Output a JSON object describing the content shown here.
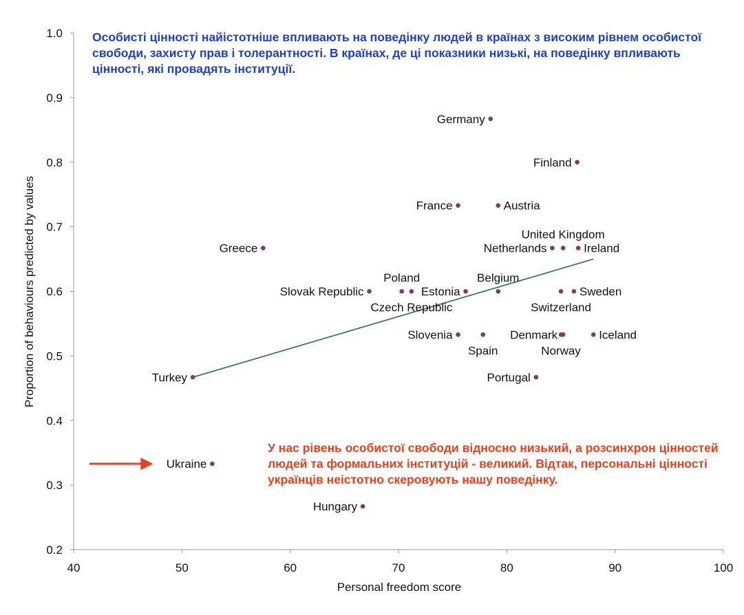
{
  "colors": {
    "point": "#7b3b6b",
    "trendline": "#3d7a5a",
    "axis": "#9a9a9a",
    "note_top": "#1f3fd0",
    "note_bottom": "#e8421f",
    "arrow": "#e8421f"
  },
  "notes": {
    "top": "Особисті цінності найістотніше впливають на поведінку людей в країнах з високим рівнем особистої свободи, захисту прав і толерантності. В країнах, де ці показники низькі, на поведінку впливають цінності, які провадять інституції.",
    "bottom": "У нас рівень особистої свободи відносно низький, а розсинхрон цінностей людей та формальних інституцій - великий. Відтак, персональні цінності українців неістотно скеровують нашу поведінку."
  },
  "chart_data": {
    "type": "scatter",
    "xlabel": "Personal freedom score",
    "ylabel": "Proportion of behaviours predicted by values",
    "xlim": [
      40,
      100
    ],
    "ylim": [
      0.2,
      1.0
    ],
    "x_ticks": [
      "40",
      "50",
      "60",
      "70",
      "80",
      "90",
      "100"
    ],
    "y_ticks": [
      "0.2",
      "0.3",
      "0.4",
      "0.5",
      "0.6",
      "0.7",
      "0.8",
      "0.9",
      "1.0"
    ],
    "grid": false,
    "points": [
      {
        "label": "Germany",
        "x": 78.5,
        "y": 0.867,
        "pos": "left"
      },
      {
        "label": "Finland",
        "x": 86.5,
        "y": 0.8,
        "pos": "left"
      },
      {
        "label": "France",
        "x": 75.5,
        "y": 0.733,
        "pos": "left"
      },
      {
        "label": "Austria",
        "x": 79.2,
        "y": 0.733,
        "pos": "right"
      },
      {
        "label": "Greece",
        "x": 57.5,
        "y": 0.667,
        "pos": "left"
      },
      {
        "label": "Netherlands",
        "x": 84.2,
        "y": 0.667,
        "pos": "left"
      },
      {
        "label": "United Kingdom",
        "x": 85.2,
        "y": 0.667,
        "pos": "above"
      },
      {
        "label": "Ireland",
        "x": 86.6,
        "y": 0.667,
        "pos": "right"
      },
      {
        "label": "Slovak Republic",
        "x": 67.3,
        "y": 0.6,
        "pos": "left"
      },
      {
        "label": "Poland",
        "x": 70.3,
        "y": 0.6,
        "pos": "above"
      },
      {
        "label": "Czech Republic",
        "x": 71.2,
        "y": 0.6,
        "pos": "below"
      },
      {
        "label": "Estonia",
        "x": 76.2,
        "y": 0.6,
        "pos": "left"
      },
      {
        "label": "Belgium",
        "x": 79.2,
        "y": 0.6,
        "pos": "above"
      },
      {
        "label": "Switzerland",
        "x": 85.0,
        "y": 0.6,
        "pos": "below"
      },
      {
        "label": "Sweden",
        "x": 86.2,
        "y": 0.6,
        "pos": "right"
      },
      {
        "label": "Slovenia",
        "x": 75.5,
        "y": 0.533,
        "pos": "left"
      },
      {
        "label": "Spain",
        "x": 77.8,
        "y": 0.533,
        "pos": "below"
      },
      {
        "label": "Denmark",
        "x": 85.2,
        "y": 0.533,
        "pos": "left"
      },
      {
        "label": "Norway",
        "x": 85.0,
        "y": 0.533,
        "pos": "below"
      },
      {
        "label": "Iceland",
        "x": 88.0,
        "y": 0.533,
        "pos": "right"
      },
      {
        "label": "Turkey",
        "x": 51.0,
        "y": 0.467,
        "pos": "left"
      },
      {
        "label": "Portugal",
        "x": 82.7,
        "y": 0.467,
        "pos": "left"
      },
      {
        "label": "Ukraine",
        "x": 52.8,
        "y": 0.333,
        "pos": "left"
      },
      {
        "label": "Hungary",
        "x": 66.7,
        "y": 0.267,
        "pos": "left"
      }
    ],
    "trendline": {
      "x": [
        51.0,
        88.0
      ],
      "y": [
        0.467,
        0.65
      ]
    },
    "annotation": {
      "type": "arrow",
      "points_to": "Ukraine"
    }
  }
}
